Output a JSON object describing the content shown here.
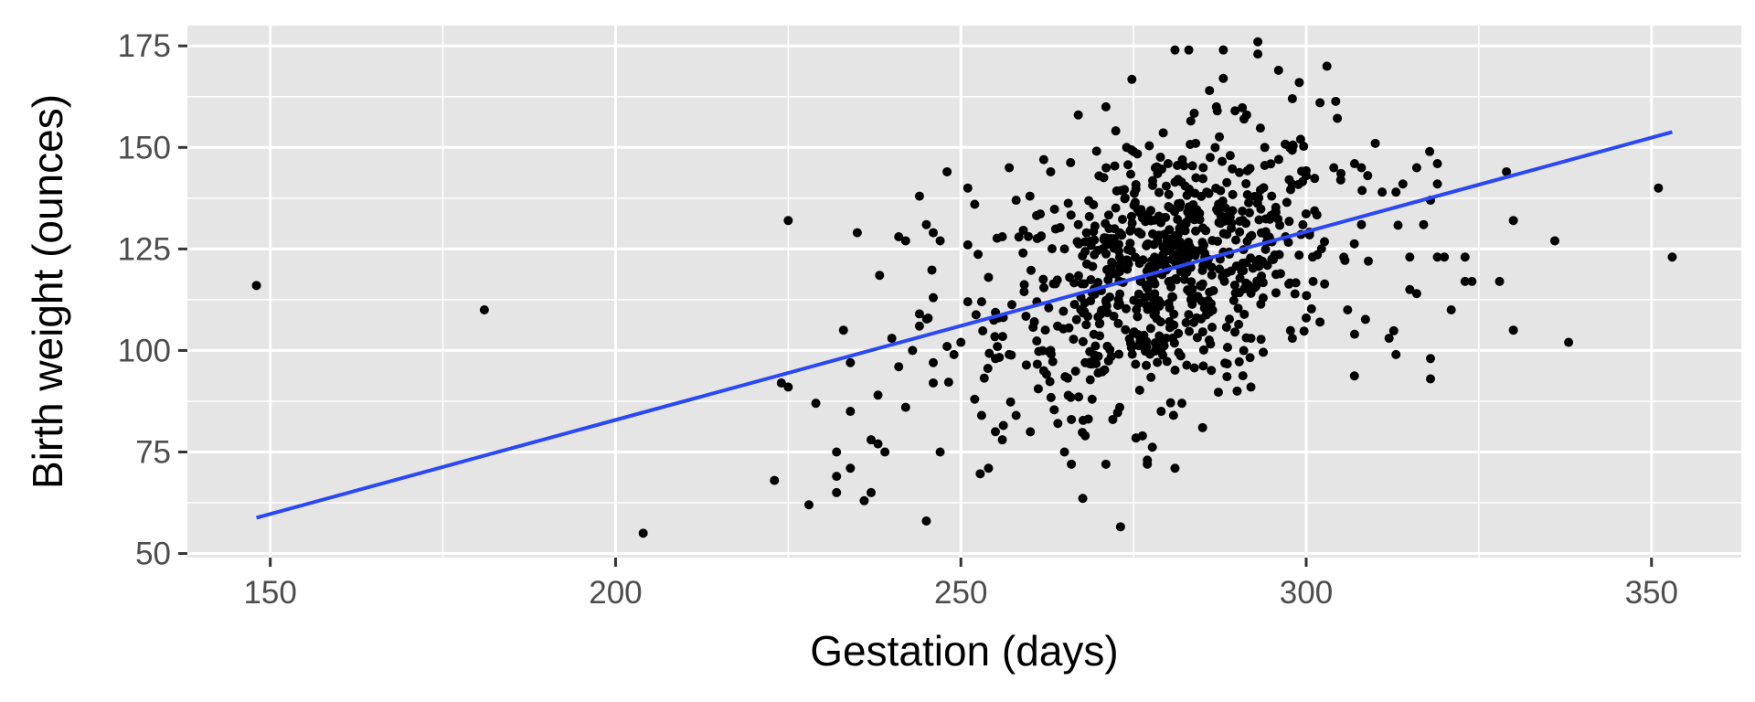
{
  "chart_data": {
    "type": "scatter",
    "title": "",
    "xlabel": "Gestation (days)",
    "ylabel": "Birth weight (ounces)",
    "xlim": [
      138,
      363
    ],
    "ylim": [
      49,
      180
    ],
    "x_ticks": [
      150,
      200,
      250,
      300,
      350
    ],
    "y_ticks": [
      50,
      75,
      100,
      125,
      150,
      175
    ],
    "grid": true,
    "legend": "none",
    "colors": {
      "panel_background": "#e5e5e5",
      "grid": "#ffffff",
      "points": "#000000",
      "fit_line": "#2c47f5",
      "tick_label": "#4d4d4d"
    },
    "trend_line": {
      "method": "linear",
      "x": [
        148,
        353
      ],
      "y": [
        58.8,
        153.8
      ]
    },
    "cluster_summary": {
      "description_note": "dense central cloud of additional observations",
      "center_x": 280,
      "center_y": 120,
      "sd_x": 12,
      "sd_y": 15,
      "count": 700
    },
    "points": [
      [
        148,
        116
      ],
      [
        181,
        110
      ],
      [
        204,
        55
      ],
      [
        223,
        68
      ],
      [
        224,
        92
      ],
      [
        225,
        132
      ],
      [
        225,
        91
      ],
      [
        228,
        62
      ],
      [
        229,
        87
      ],
      [
        232,
        75
      ],
      [
        232,
        69
      ],
      [
        232,
        65
      ],
      [
        233,
        105
      ],
      [
        234,
        97
      ],
      [
        234,
        71
      ],
      [
        234,
        85
      ],
      [
        235,
        129
      ],
      [
        236,
        63
      ],
      [
        237,
        65
      ],
      [
        237,
        78
      ],
      [
        238,
        89
      ],
      [
        238,
        77
      ],
      [
        239,
        75
      ],
      [
        240,
        103
      ],
      [
        241,
        128
      ],
      [
        241,
        96
      ],
      [
        242,
        127
      ],
      [
        242,
        86
      ],
      [
        243,
        100
      ],
      [
        244,
        138
      ],
      [
        244,
        109
      ],
      [
        244,
        106
      ],
      [
        245,
        131
      ],
      [
        245,
        58
      ],
      [
        246,
        129
      ],
      [
        246,
        92
      ],
      [
        246,
        97
      ],
      [
        246,
        113
      ],
      [
        247,
        127
      ],
      [
        247,
        75
      ],
      [
        248,
        101
      ],
      [
        248,
        144
      ],
      [
        249,
        99
      ],
      [
        250,
        102
      ],
      [
        251,
        112
      ],
      [
        251,
        140
      ],
      [
        251,
        126
      ],
      [
        252,
        88
      ],
      [
        252,
        136
      ],
      [
        253,
        84
      ],
      [
        253,
        112
      ],
      [
        254,
        71
      ],
      [
        254,
        118
      ],
      [
        255,
        80
      ],
      [
        255,
        98
      ],
      [
        256,
        128
      ],
      [
        256,
        78
      ],
      [
        257,
        145
      ],
      [
        257,
        99
      ],
      [
        258,
        137
      ],
      [
        258,
        84
      ],
      [
        259,
        124
      ],
      [
        260,
        138
      ],
      [
        261,
        112
      ],
      [
        262,
        147
      ],
      [
        262,
        95
      ],
      [
        263,
        144
      ],
      [
        263,
        100
      ],
      [
        264,
        106
      ],
      [
        265,
        75
      ],
      [
        265,
        125
      ],
      [
        266,
        72
      ],
      [
        266,
        83
      ],
      [
        267,
        158
      ],
      [
        267,
        131
      ],
      [
        268,
        79
      ],
      [
        268,
        97
      ],
      [
        269,
        88
      ],
      [
        270,
        143
      ],
      [
        271,
        72
      ],
      [
        271,
        160
      ],
      [
        272,
        83
      ],
      [
        273,
        86
      ],
      [
        274,
        150
      ],
      [
        275,
        149
      ],
      [
        276,
        117
      ],
      [
        277,
        72
      ],
      [
        277,
        73
      ],
      [
        278,
        120
      ],
      [
        279,
        85
      ],
      [
        280,
        146
      ],
      [
        281,
        71
      ],
      [
        281,
        174
      ],
      [
        282,
        87
      ],
      [
        283,
        174
      ],
      [
        284,
        151
      ],
      [
        285,
        81
      ],
      [
        286,
        164
      ],
      [
        287,
        160
      ],
      [
        288,
        174
      ],
      [
        288,
        167
      ],
      [
        289,
        148
      ],
      [
        290,
        90
      ],
      [
        291,
        157
      ],
      [
        292,
        103
      ],
      [
        292,
        91
      ],
      [
        293,
        176
      ],
      [
        293,
        173
      ],
      [
        294,
        150
      ],
      [
        295,
        138
      ],
      [
        296,
        169
      ],
      [
        297,
        128
      ],
      [
        298,
        103
      ],
      [
        298,
        162
      ],
      [
        299,
        166
      ],
      [
        300,
        108
      ],
      [
        300,
        143
      ],
      [
        301,
        117
      ],
      [
        302,
        161
      ],
      [
        302,
        107
      ],
      [
        303,
        170
      ],
      [
        304,
        145
      ],
      [
        305,
        142
      ],
      [
        306,
        110
      ],
      [
        307,
        146
      ],
      [
        307,
        104
      ],
      [
        308,
        145
      ],
      [
        308,
        131
      ],
      [
        309,
        122
      ],
      [
        310,
        151
      ],
      [
        311,
        139
      ],
      [
        312,
        103
      ],
      [
        313,
        139
      ],
      [
        313,
        99
      ],
      [
        314,
        141
      ],
      [
        315,
        123
      ],
      [
        315,
        115
      ],
      [
        316,
        145
      ],
      [
        316,
        114
      ],
      [
        317,
        131
      ],
      [
        318,
        137
      ],
      [
        318,
        98
      ],
      [
        318,
        93
      ],
      [
        319,
        123
      ],
      [
        319,
        146
      ],
      [
        319,
        141
      ],
      [
        320,
        123
      ],
      [
        321,
        110
      ],
      [
        323,
        123
      ],
      [
        323,
        117
      ],
      [
        324,
        117
      ],
      [
        328,
        117
      ],
      [
        329,
        144
      ],
      [
        330,
        132
      ],
      [
        330,
        105
      ],
      [
        336,
        127
      ],
      [
        338,
        102
      ],
      [
        351,
        140
      ],
      [
        353,
        123
      ]
    ]
  }
}
